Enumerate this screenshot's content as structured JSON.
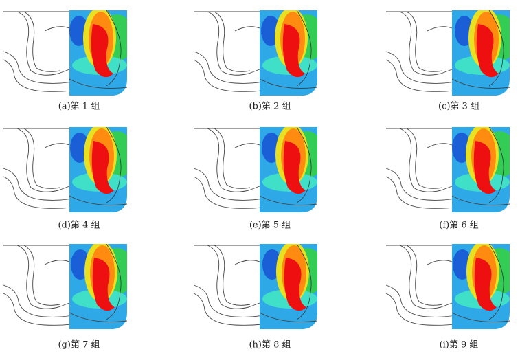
{
  "panels": [
    {
      "caption": "(a)第 1 组"
    },
    {
      "caption": "(b)第 2 组"
    },
    {
      "caption": "(c)第 3 组"
    },
    {
      "caption": "(d)第 4 组"
    },
    {
      "caption": "(e)第 5 组"
    },
    {
      "caption": "(f)第 6 组"
    },
    {
      "caption": "(g)第 7 组"
    },
    {
      "caption": "(h)第 8 组"
    },
    {
      "caption": "(i)第 9 组"
    }
  ]
}
